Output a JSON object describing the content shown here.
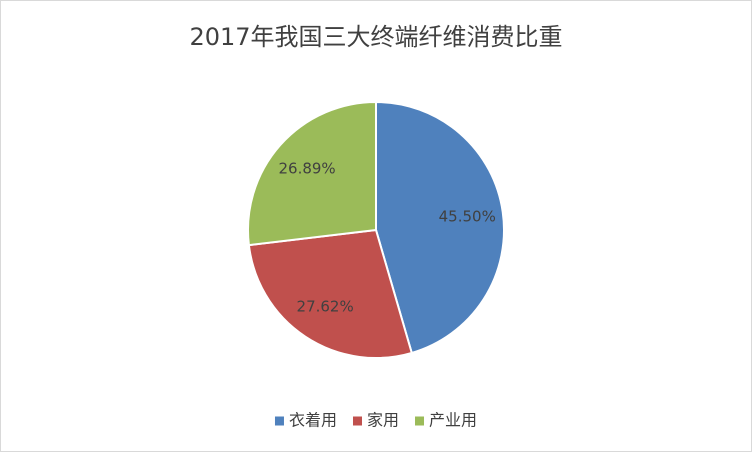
{
  "chart_data": {
    "type": "pie",
    "title": "2017年我国三大终端纤维消费比重",
    "categories": [
      "衣着用",
      "家用",
      "产业用"
    ],
    "values": [
      45.5,
      27.62,
      26.89
    ],
    "value_labels": [
      "45.50%",
      "27.62%",
      "26.89%"
    ],
    "colors": [
      "#4f81bd",
      "#c0504d",
      "#9bbb59"
    ],
    "legend": "bottom"
  }
}
